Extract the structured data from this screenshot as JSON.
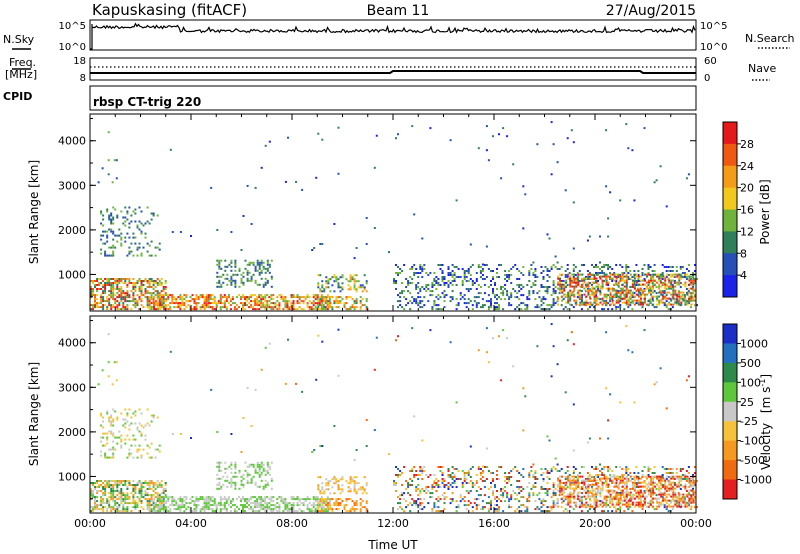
{
  "header": {
    "station": "Kapuskasing (fitACF)",
    "beam": "Beam 11",
    "date": "27/Aug/2015"
  },
  "strip_labels": {
    "nsky": "N.Sky",
    "nsearch": "N.Search",
    "freq_line1": "Freq.",
    "freq_line2": "[MHz]",
    "nave": "Nave",
    "cpid": "CPID",
    "nsky_top": "10^5",
    "nsky_bot": "10^0",
    "nsearch_top": "10^5",
    "nsearch_bot": "10^0",
    "freq_top": "18",
    "freq_bot": "8",
    "nave_top": "60",
    "nave_bot": "0"
  },
  "cpid_text": "rbsp CT-trig 220",
  "chart_data": [
    {
      "type": "heatmap",
      "quantity": "Power",
      "ylabel": "Slant Range [km]",
      "xlabel": "",
      "yticks": [
        "1000",
        "2000",
        "3000",
        "4000"
      ],
      "ylim": [
        180,
        4600
      ],
      "xlim": [
        0,
        24
      ],
      "colorbar_label": "Power [dB]",
      "colorbar_ticks": [
        "4",
        "8",
        "12",
        "16",
        "20",
        "24",
        "28"
      ],
      "colorbar_range": [
        0,
        32
      ],
      "colors": [
        "#1b23e8",
        "#264fb8",
        "#2e7f5a",
        "#6fb33a",
        "#f2c81e",
        "#f49b18",
        "#f05a10",
        "#e41919"
      ]
    },
    {
      "type": "heatmap",
      "quantity": "Velocity",
      "ylabel": "Slant Range [km]",
      "xlabel": "Time UT",
      "xticks": [
        "00:00",
        "04:00",
        "08:00",
        "12:00",
        "16:00",
        "20:00",
        "00:00"
      ],
      "yticks": [
        "1000",
        "2000",
        "3000",
        "4000"
      ],
      "ylim": [
        180,
        4600
      ],
      "xlim": [
        0,
        24
      ],
      "colorbar_label_main": "Velocity",
      "colorbar_label_unit": "[m s",
      "colorbar_label_exp": "-1",
      "colorbar_label_close": "]",
      "colorbar_ticks": [
        "1000",
        "500",
        "100",
        "25",
        "-25",
        "-100",
        "-500",
        "-1000"
      ],
      "colors": [
        "#1c2ec8",
        "#2470c0",
        "#2e8a4a",
        "#5ec83a",
        "#c8c8c8",
        "#f5c23a",
        "#f59a1e",
        "#f06a10",
        "#e42020"
      ]
    }
  ]
}
